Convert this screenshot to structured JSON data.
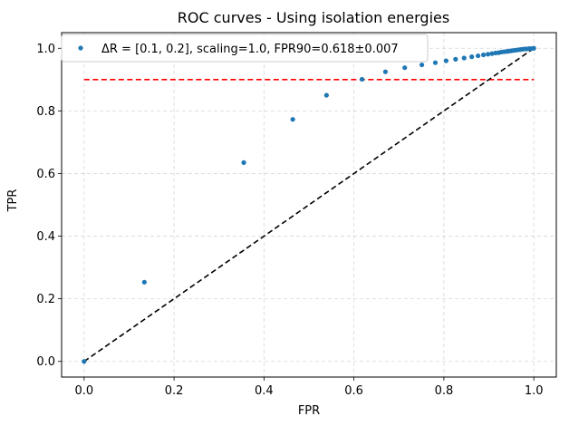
{
  "chart_data": {
    "type": "scatter",
    "title": "ROC curves - Using isolation energies",
    "xlabel": "FPR",
    "ylabel": "TPR",
    "xlim": [
      -0.05,
      1.05
    ],
    "ylim": [
      -0.05,
      1.05
    ],
    "xticks": [
      0.0,
      0.2,
      0.4,
      0.6,
      0.8,
      1.0
    ],
    "yticks": [
      0.0,
      0.2,
      0.4,
      0.6,
      0.8,
      1.0
    ],
    "xtick_labels": [
      "0.0",
      "0.2",
      "0.4",
      "0.6",
      "0.8",
      "1.0"
    ],
    "ytick_labels": [
      "0.0",
      "0.2",
      "0.4",
      "0.6",
      "0.8",
      "1.0"
    ],
    "grid": true,
    "legend_position": "top-left",
    "series": [
      {
        "name": "ΔR = [0.1, 0.2], scaling=1.0, FPR90=0.618±0.007",
        "color": "#1f77b4",
        "x": [
          0.0,
          0.134,
          0.355,
          0.464,
          0.539,
          0.618,
          0.67,
          0.713,
          0.751,
          0.781,
          0.805,
          0.826,
          0.845,
          0.862,
          0.876,
          0.888,
          0.898,
          0.907,
          0.915,
          0.922,
          0.928,
          0.934,
          0.94,
          0.945,
          0.95,
          0.955,
          0.96,
          0.965,
          0.97,
          0.975,
          0.98,
          0.985,
          0.99,
          0.995,
          1.0
        ],
        "y": [
          0.0,
          0.253,
          0.635,
          0.773,
          0.85,
          0.901,
          0.925,
          0.938,
          0.947,
          0.954,
          0.96,
          0.965,
          0.969,
          0.973,
          0.976,
          0.979,
          0.981,
          0.983,
          0.985,
          0.986,
          0.988,
          0.989,
          0.99,
          0.991,
          0.992,
          0.993,
          0.994,
          0.995,
          0.996,
          0.997,
          0.998,
          0.998,
          0.999,
          0.999,
          1.0
        ]
      }
    ],
    "reference_lines": [
      {
        "kind": "horizontal",
        "y": 0.9,
        "x_from": 0.0,
        "x_to": 1.0,
        "color": "#ff0000",
        "style": "dashed"
      },
      {
        "kind": "diagonal",
        "from": [
          0.0,
          0.0
        ],
        "to": [
          1.0,
          1.0
        ],
        "color": "#000000",
        "style": "dashed"
      }
    ]
  }
}
